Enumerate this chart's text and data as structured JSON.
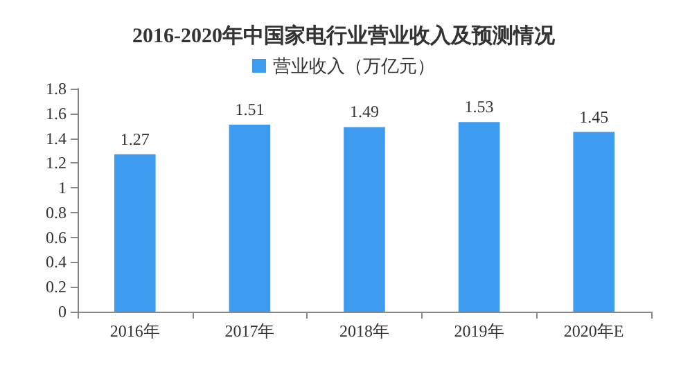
{
  "chart_data": {
    "type": "bar",
    "title": "2016-2020年中国家电行业营业收入及预测情况",
    "categories": [
      "2016年",
      "2017年",
      "2018年",
      "2019年",
      "2020年E"
    ],
    "series": [
      {
        "name": "营业收入（万亿元）",
        "color": "#3d9bf0",
        "values": [
          1.27,
          1.51,
          1.49,
          1.53,
          1.45
        ]
      }
    ],
    "ylim": [
      0,
      1.8
    ],
    "yticks": [
      0,
      0.2,
      0.4,
      0.6,
      0.8,
      1,
      1.2,
      1.4,
      1.6,
      1.8
    ],
    "data_labels": true,
    "legend": "top",
    "grid": false
  }
}
